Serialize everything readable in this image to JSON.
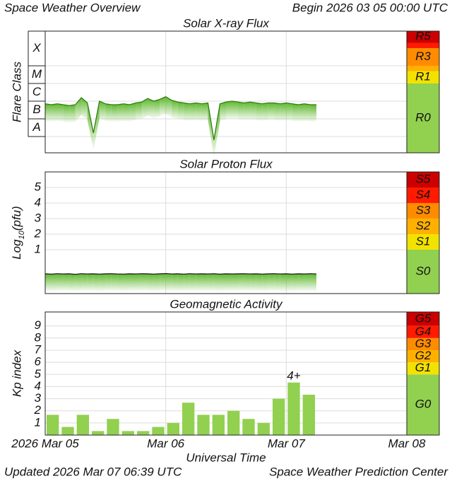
{
  "header": {
    "title": "Space Weather Overview",
    "begin": "Begin 2026 03 05 00:00 UTC"
  },
  "footer": {
    "updated": "Updated 2026 Mar 07 06:39 UTC",
    "source": "Space Weather Prediction Center"
  },
  "chart_data": [
    {
      "type": "line",
      "title": "Solar X-ray Flux",
      "y_label": "Flare Class",
      "color": "#2f7d12",
      "ylim": [
        -8.92,
        -2.04
      ],
      "flare_classes": [
        {
          "label": "A",
          "from": -8
        },
        {
          "label": "B",
          "from": -7
        },
        {
          "label": "C",
          "from": -6
        },
        {
          "label": "M",
          "from": -5
        },
        {
          "label": "X",
          "from": -4
        }
      ],
      "scale": [
        {
          "label": "R0",
          "color": "#92d050"
        },
        {
          "label": "R1",
          "color": "#f2e200",
          "from": -5
        },
        {
          "label": null,
          "color": "#ffb000",
          "from": -4.3
        },
        {
          "label": "R3",
          "color": "#ff8c00",
          "from": -4
        },
        {
          "label": null,
          "color": "#ff1a00",
          "from": -3
        },
        {
          "label": "R5",
          "color": "#cc0000",
          "from": -2.7
        }
      ],
      "x": [
        0,
        0.05,
        0.1,
        0.15,
        0.2,
        0.25,
        0.3,
        0.35,
        0.4,
        0.45,
        0.5,
        0.55,
        0.6,
        0.65,
        0.7,
        0.75,
        0.8,
        0.85,
        0.9,
        0.95,
        1,
        1.05,
        1.1,
        1.15,
        1.2,
        1.25,
        1.3,
        1.35,
        1.4,
        1.45,
        1.5,
        1.55,
        1.6,
        1.65,
        1.7,
        1.75,
        1.8,
        1.85,
        1.9,
        1.95,
        2,
        2.05,
        2.1,
        2.15,
        2.2,
        2.25
      ],
      "values": [
        -6.15,
        -6.2,
        -6.15,
        -6.2,
        -6.25,
        -6.2,
        -5.8,
        -6.1,
        -7.8,
        -6.0,
        -6.15,
        -6.2,
        -6.2,
        -6.15,
        -6.2,
        -6.1,
        -6.05,
        -5.85,
        -6.0,
        -5.9,
        -5.75,
        -5.95,
        -6.05,
        -6.1,
        -6.15,
        -6.1,
        -6.15,
        -6.1,
        -8.2,
        -6.15,
        -6.05,
        -6.0,
        -6.05,
        -6.1,
        -6.05,
        -6.1,
        -6.15,
        -6.1,
        -6.1,
        -6.15,
        -6.1,
        -6.15,
        -6.2,
        -6.15,
        -6.2,
        -6.2
      ]
    },
    {
      "type": "line",
      "title": "Solar Proton Flux",
      "y_label": {
        "base": "Log",
        "sub": "10",
        "rest": "(pfu)"
      },
      "color": "#1f1f1f",
      "ylim": [
        -1.82,
        6
      ],
      "yticks": [
        1,
        2,
        3,
        4,
        5
      ],
      "scale": [
        {
          "label": "S0",
          "color": "#92d050"
        },
        {
          "label": "S1",
          "color": "#f2e200",
          "from": 1
        },
        {
          "label": "S2",
          "color": "#ffb000",
          "from": 2
        },
        {
          "label": "S3",
          "color": "#ff8c00",
          "from": 3
        },
        {
          "label": "S4",
          "color": "#ff1a00",
          "from": 4
        },
        {
          "label": "S5",
          "color": "#cc0000",
          "from": 5
        }
      ],
      "x": [
        0,
        0.05,
        0.1,
        0.15,
        0.2,
        0.25,
        0.3,
        0.35,
        0.4,
        0.45,
        0.5,
        0.55,
        0.6,
        0.65,
        0.7,
        0.75,
        0.8,
        0.85,
        0.9,
        0.95,
        1,
        1.05,
        1.1,
        1.15,
        1.2,
        1.25,
        1.3,
        1.35,
        1.4,
        1.45,
        1.5,
        1.55,
        1.6,
        1.65,
        1.7,
        1.75,
        1.8,
        1.85,
        1.9,
        1.95,
        2,
        2.05,
        2.1,
        2.15,
        2.2,
        2.25
      ],
      "values": [
        -0.55,
        -0.57,
        -0.54,
        -0.56,
        -0.55,
        -0.58,
        -0.54,
        -0.56,
        -0.55,
        -0.57,
        -0.55,
        -0.54,
        -0.56,
        -0.57,
        -0.55,
        -0.56,
        -0.54,
        -0.55,
        -0.57,
        -0.55,
        -0.53,
        -0.56,
        -0.55,
        -0.57,
        -0.54,
        -0.56,
        -0.55,
        -0.56,
        -0.54,
        -0.57,
        -0.55,
        -0.56,
        -0.55,
        -0.54,
        -0.56,
        -0.55,
        -0.57,
        -0.55,
        -0.54,
        -0.56,
        -0.55,
        -0.57,
        -0.55,
        -0.56,
        -0.54,
        -0.56
      ]
    },
    {
      "type": "bar",
      "title": "Geomagnetic Activity",
      "y_label": "Kp index",
      "x_label": "Universal Time",
      "color": "#92d050",
      "ylim": [
        0,
        10.15
      ],
      "yticks": [
        1,
        2,
        3,
        4,
        5,
        6,
        7,
        8,
        9
      ],
      "xlim": [
        0,
        3
      ],
      "xticks": [
        {
          "value": 0,
          "label": "2026 Mar 05"
        },
        {
          "value": 1,
          "label": "Mar 06"
        },
        {
          "value": 2,
          "label": "Mar 07"
        },
        {
          "value": 3,
          "label": "Mar 08"
        }
      ],
      "bar_width": 0.125,
      "scale": [
        {
          "label": "G0",
          "color": "#92d050"
        },
        {
          "label": "G1",
          "color": "#f2e200",
          "from": 5
        },
        {
          "label": "G2",
          "color": "#ffb000",
          "from": 6
        },
        {
          "label": "G3",
          "color": "#ff8c00",
          "from": 7
        },
        {
          "label": "G4",
          "color": "#ff1a00",
          "from": 8
        },
        {
          "label": "G5",
          "color": "#cc0000",
          "from": 9
        }
      ],
      "x": [
        0,
        0.125,
        0.25,
        0.375,
        0.5,
        0.625,
        0.75,
        0.875,
        1,
        1.125,
        1.25,
        1.375,
        1.5,
        1.625,
        1.75,
        1.875,
        2,
        2.125
      ],
      "values": [
        1.67,
        0.67,
        1.67,
        0.33,
        1.33,
        0.33,
        0.33,
        0.67,
        1.0,
        2.67,
        1.67,
        1.67,
        2.0,
        1.33,
        1.0,
        3.0,
        4.33,
        3.33
      ],
      "value_labels": [
        null,
        null,
        null,
        null,
        null,
        null,
        null,
        null,
        null,
        null,
        null,
        null,
        null,
        null,
        null,
        null,
        "4+",
        null
      ]
    }
  ]
}
